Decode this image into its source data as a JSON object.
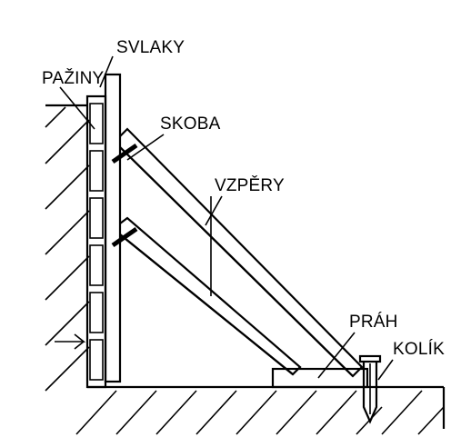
{
  "labels": {
    "svlaky": "SVLAKY",
    "paziny": "PAŽINY",
    "skoba": "SKOBA",
    "vzpery": "VZPĚRY",
    "prah": "PRÁH",
    "kolik": "KOLÍK"
  }
}
